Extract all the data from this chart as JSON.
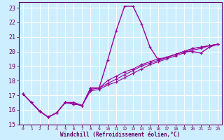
{
  "xlabel": "Windchill (Refroidissement éolien,°C)",
  "background_color": "#cceeff",
  "grid_color": "#ffffff",
  "line_color": "#990099",
  "xlim": [
    -0.5,
    23.5
  ],
  "ylim": [
    15,
    23.4
  ],
  "xticks": [
    0,
    1,
    2,
    3,
    4,
    5,
    6,
    7,
    8,
    9,
    10,
    11,
    12,
    13,
    14,
    15,
    16,
    17,
    18,
    19,
    20,
    21,
    22,
    23
  ],
  "yticks": [
    15,
    16,
    17,
    18,
    19,
    20,
    21,
    22,
    23
  ],
  "lines": [
    {
      "x": [
        0,
        1,
        2,
        3,
        4,
        5,
        6,
        7,
        8,
        9,
        10,
        11,
        12,
        13,
        14,
        15,
        16,
        17,
        18,
        19,
        20,
        21,
        22,
        23
      ],
      "y": [
        17.1,
        16.5,
        15.9,
        15.5,
        15.8,
        16.5,
        16.5,
        16.3,
        17.5,
        17.5,
        19.4,
        21.4,
        23.1,
        23.1,
        21.9,
        20.3,
        19.4,
        19.6,
        19.8,
        20.0,
        20.0,
        19.9,
        20.3,
        20.5
      ],
      "lw": 1.0
    },
    {
      "x": [
        0,
        1,
        2,
        3,
        4,
        5,
        6,
        7,
        8,
        9,
        10,
        11,
        12,
        13,
        14,
        15,
        16,
        17,
        18,
        19,
        20,
        21,
        22,
        23
      ],
      "y": [
        17.1,
        16.5,
        15.9,
        15.5,
        15.8,
        16.5,
        16.4,
        16.3,
        17.5,
        17.5,
        18.0,
        18.3,
        18.6,
        18.8,
        19.1,
        19.3,
        19.5,
        19.6,
        19.8,
        20.0,
        20.2,
        20.3,
        20.4,
        20.5
      ],
      "lw": 0.8
    },
    {
      "x": [
        0,
        1,
        2,
        3,
        4,
        5,
        6,
        7,
        8,
        9,
        10,
        11,
        12,
        13,
        14,
        15,
        16,
        17,
        18,
        19,
        20,
        21,
        22,
        23
      ],
      "y": [
        17.1,
        16.5,
        15.9,
        15.5,
        15.8,
        16.5,
        16.4,
        16.3,
        17.4,
        17.5,
        17.8,
        18.1,
        18.4,
        18.7,
        19.0,
        19.2,
        19.4,
        19.6,
        19.8,
        20.0,
        20.2,
        20.3,
        20.4,
        20.5
      ],
      "lw": 0.8
    },
    {
      "x": [
        0,
        1,
        2,
        3,
        4,
        5,
        6,
        7,
        8,
        9,
        10,
        11,
        12,
        13,
        14,
        15,
        16,
        17,
        18,
        19,
        20,
        21,
        22,
        23
      ],
      "y": [
        17.1,
        16.5,
        15.9,
        15.5,
        15.8,
        16.5,
        16.4,
        16.3,
        17.3,
        17.4,
        17.7,
        17.9,
        18.2,
        18.5,
        18.8,
        19.1,
        19.3,
        19.5,
        19.7,
        19.9,
        20.1,
        20.2,
        20.4,
        20.5
      ],
      "lw": 0.8
    }
  ]
}
